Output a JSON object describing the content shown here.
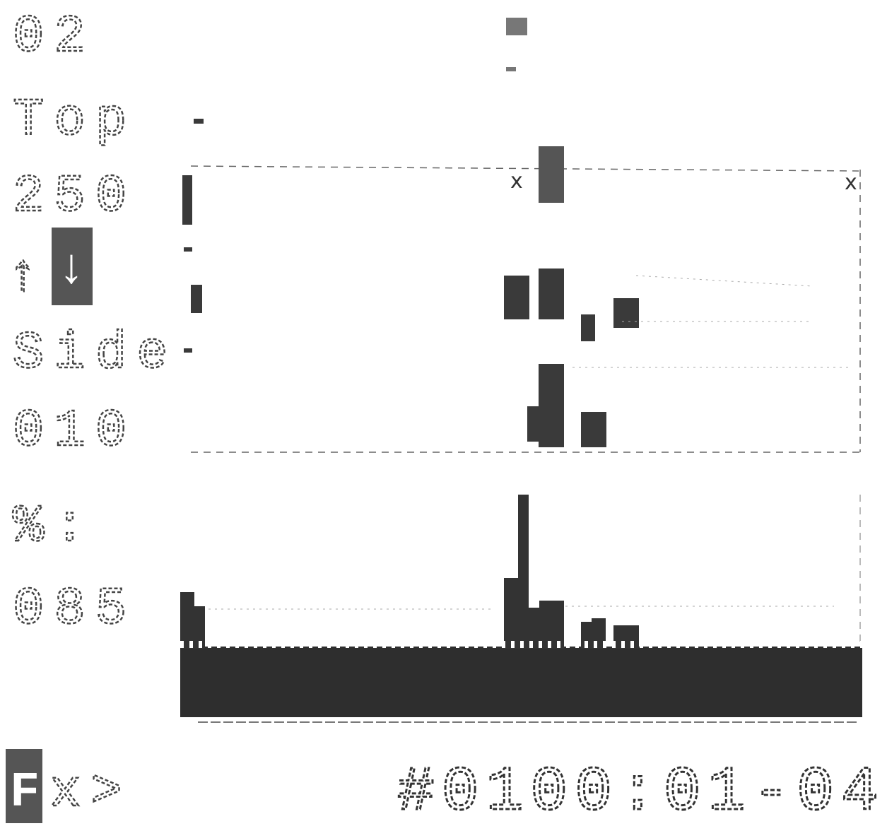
{
  "panel": {
    "rows": [
      "02",
      "Top",
      "250",
      "Side",
      "010",
      "%:",
      "085"
    ],
    "up_arrow": "↑",
    "down_arrow": "↓",
    "key": "F",
    "prompt": "x>"
  },
  "plot": {
    "markers": [
      "x",
      "x"
    ]
  },
  "footer": {
    "code": "#0100:01-04"
  }
}
